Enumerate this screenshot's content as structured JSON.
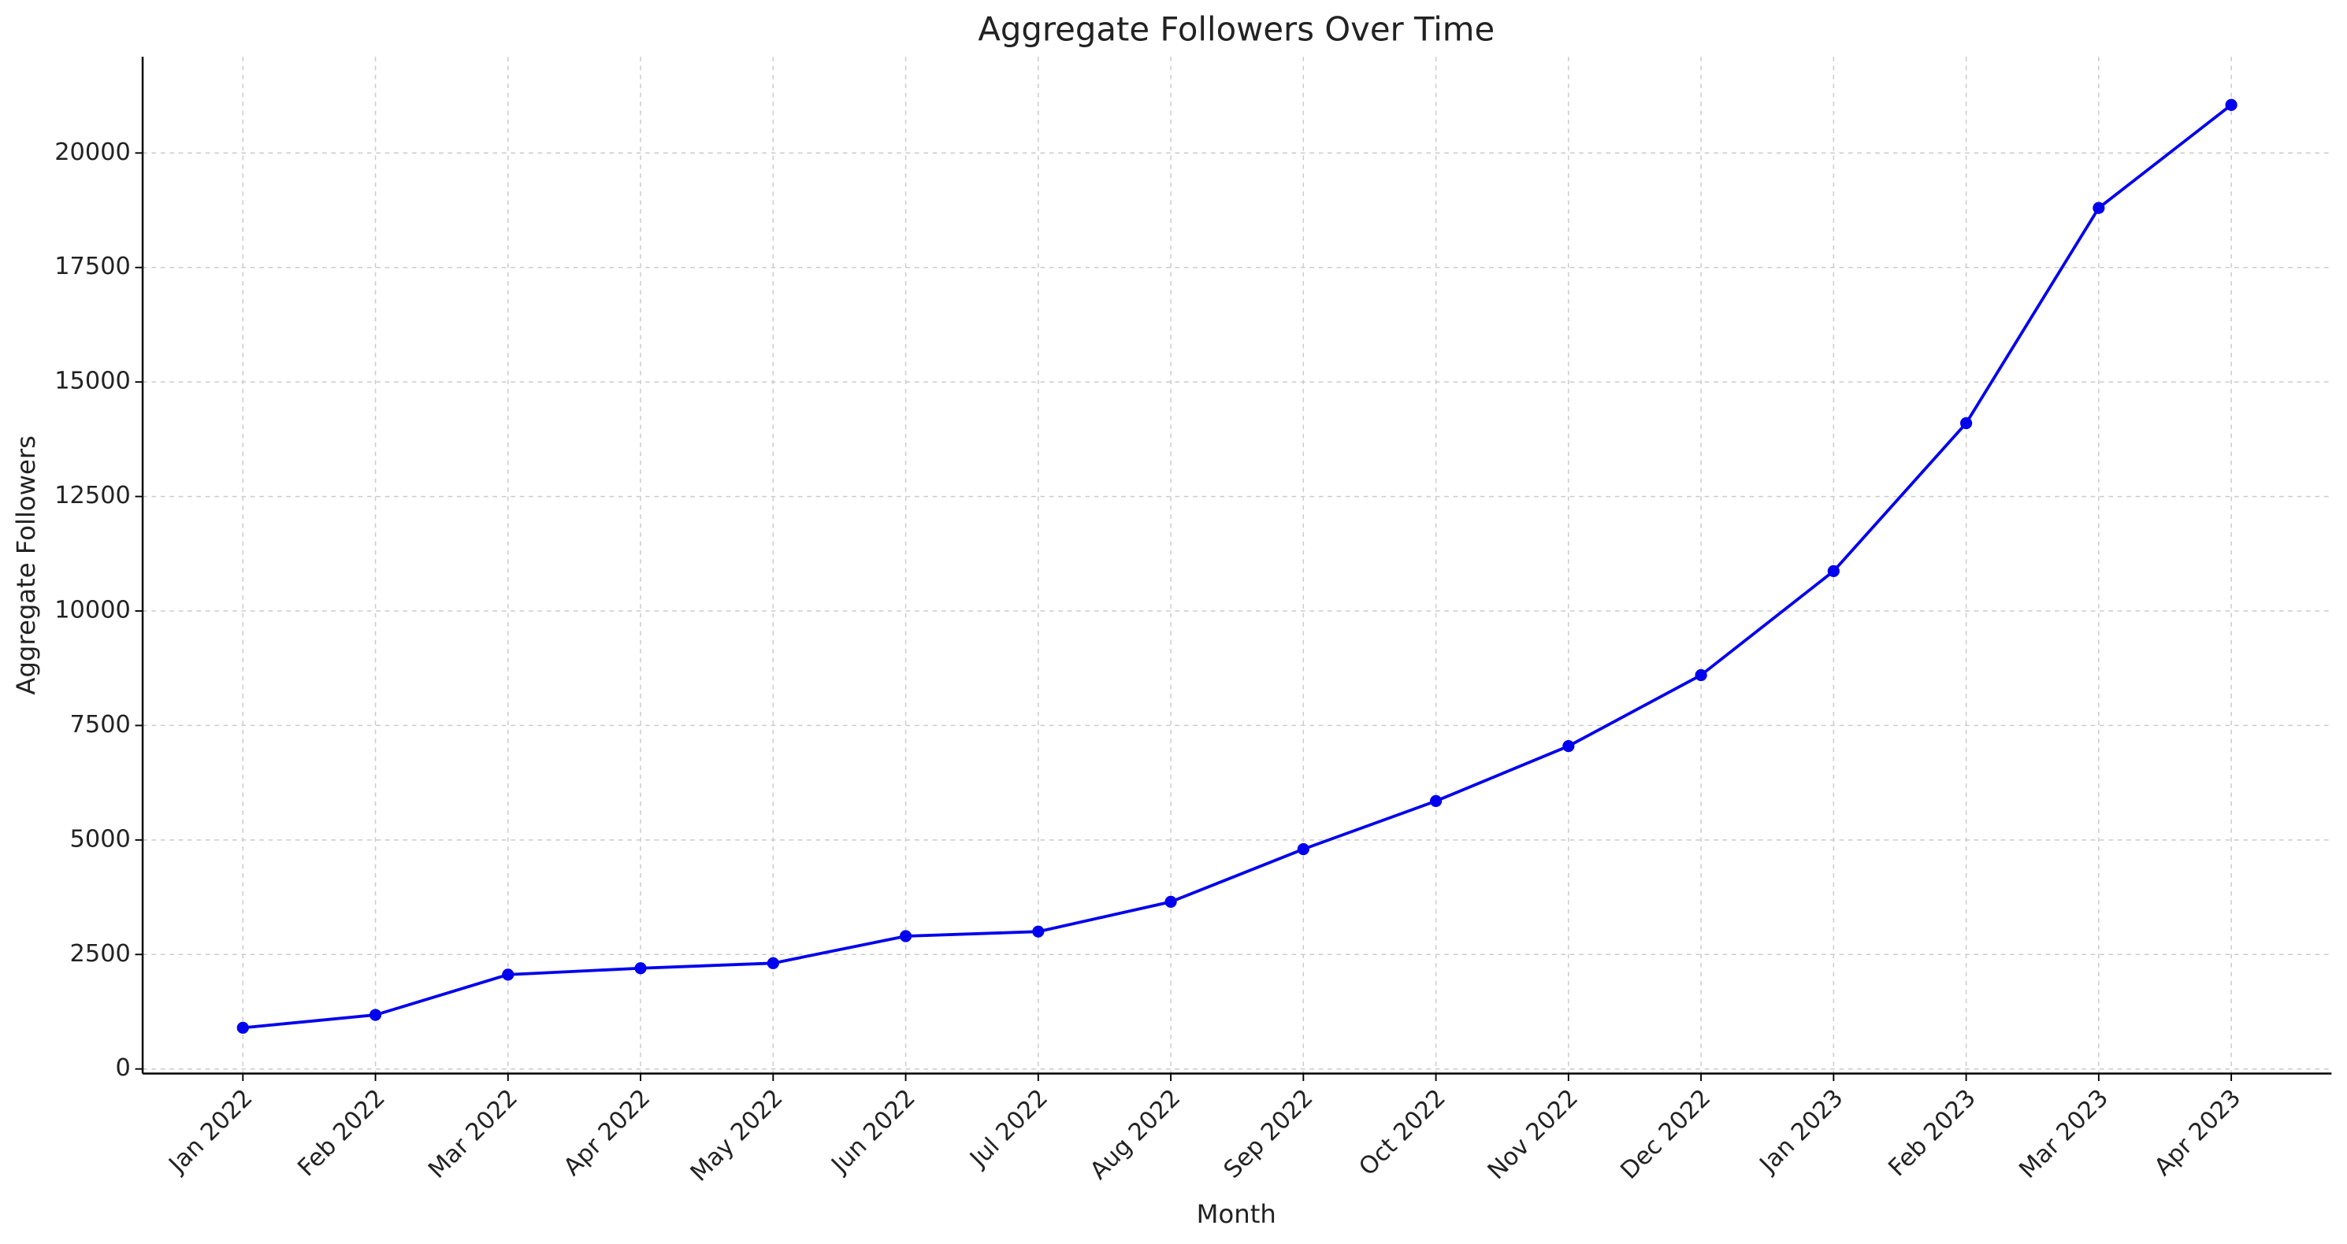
{
  "chart_data": {
    "type": "line",
    "title": "Aggregate Followers Over Time",
    "x_label": "Month",
    "y_label": "Aggregate Followers",
    "categories": [
      "Jan 2022",
      "Feb 2022",
      "Mar 2022",
      "Apr 2022",
      "May 2022",
      "Jun 2022",
      "Jul 2022",
      "Aug 2022",
      "Sep 2022",
      "Oct 2022",
      "Nov 2022",
      "Dec 2022",
      "Jan 2023",
      "Feb 2023",
      "Mar 2023",
      "Apr 2023"
    ],
    "series": [
      {
        "name": "Aggregate Followers",
        "color": "#0000ee",
        "values": [
          900,
          1180,
          2060,
          2200,
          2310,
          2900,
          3000,
          3650,
          4800,
          5850,
          7050,
          8600,
          10870,
          14100,
          18800,
          21050
        ]
      }
    ],
    "ylim": [
      -100,
      22100
    ],
    "yticks": [
      0,
      2500,
      5000,
      7500,
      10000,
      12500,
      15000,
      17500,
      20000
    ],
    "grid": true
  }
}
